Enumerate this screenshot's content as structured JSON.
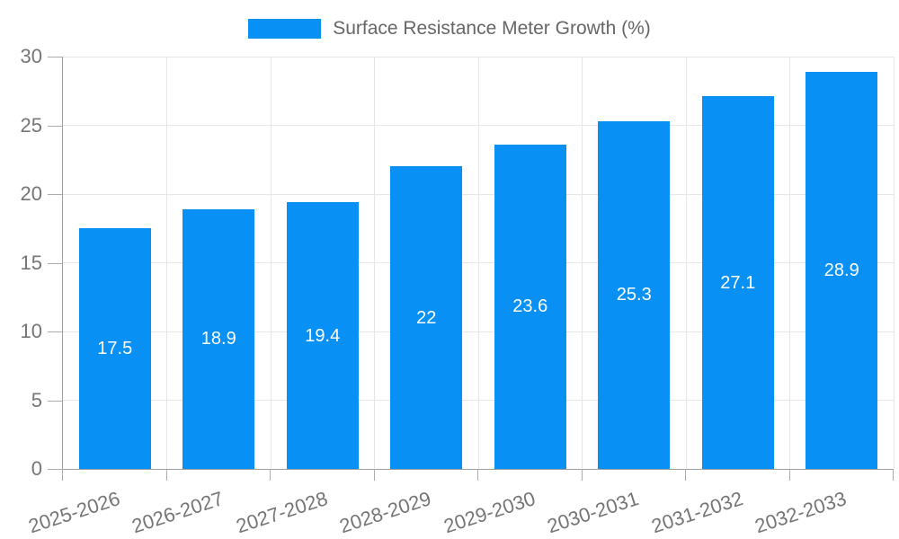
{
  "chart_data": {
    "type": "bar",
    "title": "Surface Resistance Meter Growth (%)",
    "categories": [
      "2025-2026",
      "2026-2027",
      "2027-2028",
      "2028-2029",
      "2029-2030",
      "2030-2031",
      "2031-2032",
      "2032-2033"
    ],
    "values": [
      17.5,
      18.9,
      19.4,
      22,
      23.6,
      25.3,
      27.1,
      28.9
    ],
    "bar_labels": [
      "17.5",
      "18.9",
      "19.4",
      "22",
      "23.6",
      "25.3",
      "27.1",
      "28.9"
    ],
    "xlabel": "",
    "ylabel": "",
    "ylim": [
      0,
      30
    ],
    "y_ticks": [
      0,
      5,
      10,
      15,
      20,
      25,
      30
    ],
    "grid": true,
    "legend_position": "top",
    "colors": {
      "bar": "#0890f4",
      "bar_label": "#ffffff",
      "tick_label": "#757575",
      "legend_text": "#666666",
      "grid": "#e6e6e6",
      "axis": "#9e9e9e",
      "tick_mark": "#ababab"
    }
  }
}
